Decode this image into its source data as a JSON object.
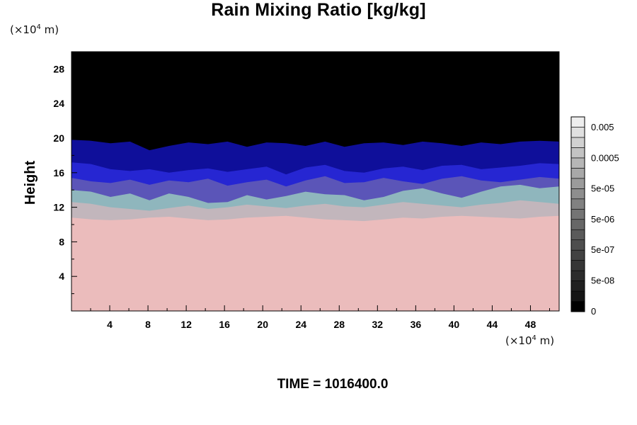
{
  "chart_data": {
    "type": "heatmap",
    "title": "Rain Mixing Ratio [kg/kg]",
    "ylabel": "Height",
    "y_unit_base": "(×10",
    "y_unit_exp": "4",
    "y_unit_tail": " m)",
    "x_unit_base": "(×10",
    "x_unit_exp": "4",
    "x_unit_tail": " m)",
    "xlim": [
      0,
      51
    ],
    "ylim": [
      0,
      30
    ],
    "x_ticks": [
      4,
      8,
      12,
      16,
      20,
      24,
      28,
      32,
      36,
      40,
      44,
      48
    ],
    "y_ticks": [
      4,
      8,
      12,
      16,
      20,
      24,
      28
    ],
    "colorbar": {
      "labels": [
        "0.005",
        "0.0005",
        "5e-05",
        "5e-06",
        "5e-07",
        "5e-08",
        "0"
      ],
      "colors": [
        "#000000",
        "#151515",
        "#202020",
        "#2b2b2b",
        "#363636",
        "#424242",
        "#4e4e4e",
        "#5a5a5a",
        "#676767",
        "#747474",
        "#818181",
        "#8e8e8e",
        "#9b9b9b",
        "#a8a8a8",
        "#b6b6b6",
        "#c3c3c3",
        "#d1d1d1",
        "#e0e0e0",
        "#eeeeee"
      ]
    },
    "layers": [
      {
        "name": "low-pink",
        "color": "#ebbcbc",
        "top": [
          10.8,
          10.6,
          10.5,
          10.6,
          10.8,
          10.9,
          10.7,
          10.5,
          10.6,
          10.8,
          10.9,
          11.0,
          10.8,
          10.6,
          10.5,
          10.4,
          10.6,
          10.8,
          10.7,
          10.9,
          11.0,
          10.9,
          10.8,
          10.7,
          10.9,
          11.0
        ]
      },
      {
        "name": "gray-band",
        "color": "#c2b6bc",
        "top": [
          12.6,
          12.4,
          12.0,
          11.8,
          11.6,
          11.9,
          12.2,
          11.8,
          12.0,
          12.3,
          12.1,
          11.9,
          12.2,
          12.4,
          12.1,
          12.0,
          12.3,
          12.6,
          12.4,
          12.2,
          12.0,
          12.3,
          12.5,
          12.8,
          12.6,
          12.4
        ]
      },
      {
        "name": "teal-band",
        "color": "#8fb6bd",
        "top": [
          14.0,
          13.8,
          13.2,
          13.6,
          12.8,
          13.6,
          13.2,
          12.5,
          12.6,
          13.4,
          12.9,
          13.3,
          13.8,
          13.5,
          13.4,
          12.8,
          13.2,
          13.9,
          14.2,
          13.6,
          13.1,
          13.8,
          14.4,
          14.6,
          14.2,
          14.4
        ]
      },
      {
        "name": "violet-band",
        "color": "#5b55b8",
        "top": [
          15.4,
          15.0,
          14.8,
          15.2,
          14.6,
          15.1,
          14.9,
          15.3,
          14.5,
          14.9,
          15.2,
          14.4,
          15.1,
          15.6,
          14.8,
          14.9,
          15.4,
          15.0,
          14.7,
          15.3,
          15.6,
          15.1,
          14.9,
          15.2,
          15.5,
          15.3
        ]
      },
      {
        "name": "blue-band",
        "color": "#2626d2",
        "top": [
          17.2,
          17.0,
          16.4,
          16.2,
          16.4,
          16.0,
          16.3,
          16.5,
          16.1,
          16.4,
          16.7,
          15.8,
          16.6,
          16.9,
          16.2,
          16.0,
          16.5,
          16.7,
          16.3,
          16.8,
          16.9,
          16.4,
          16.6,
          16.8,
          17.1,
          17.0
        ]
      },
      {
        "name": "deep-blue",
        "color": "#0f0f9a",
        "top": [
          19.8,
          19.7,
          19.4,
          19.6,
          18.6,
          19.1,
          19.5,
          19.3,
          19.6,
          19.0,
          19.5,
          19.4,
          19.1,
          19.6,
          19.0,
          19.4,
          19.5,
          19.2,
          19.6,
          19.4,
          19.1,
          19.5,
          19.3,
          19.6,
          19.7,
          19.6
        ]
      }
    ],
    "background": "#000000"
  },
  "time_label": "TIME = 1016400.0"
}
